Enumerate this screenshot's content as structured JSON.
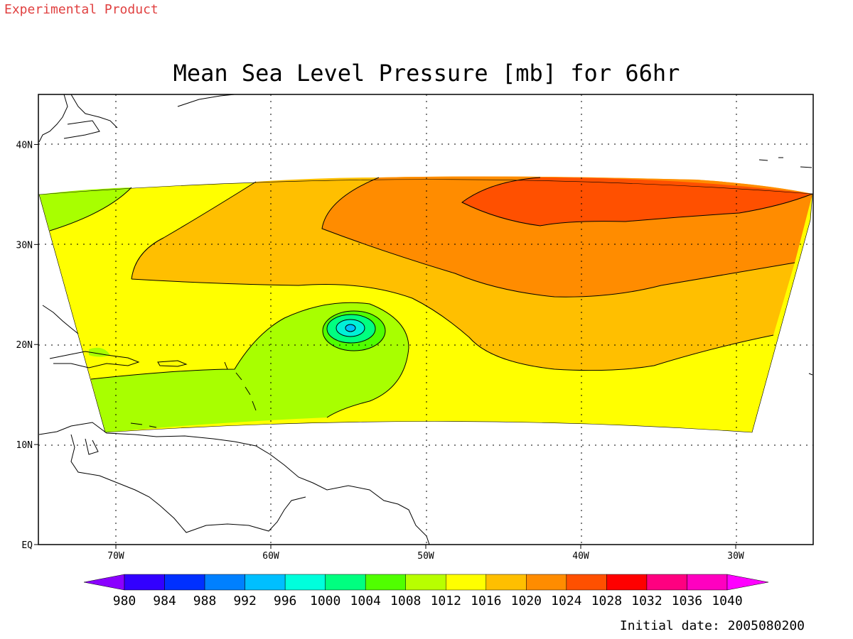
{
  "watermark": "Experimental Product",
  "title": "Mean Sea Level Pressure [mb] for 66hr",
  "initial_date": "Initial date: 2005080200",
  "map": {
    "lon_ticks": [
      "70W",
      "60W",
      "50W",
      "40W",
      "30W"
    ],
    "lat_ticks": [
      "40N",
      "30N",
      "20N",
      "10N",
      "EQ"
    ],
    "lon_range": [
      -75,
      -25
    ],
    "lat_range": [
      0,
      45
    ],
    "grid": "dotted",
    "contour_interval_mb": 4,
    "low_center": {
      "lon": -55,
      "lat": 21.7
    },
    "regions": [
      {
        "level": "1008-1012",
        "color": "#a8ff00"
      },
      {
        "level": "1012-1016",
        "color": "#ffff00"
      },
      {
        "level": "1016-1020",
        "color": "#ffbf00"
      },
      {
        "level": "1020-1024",
        "color": "#ff8c00"
      },
      {
        "level": "1024-1028",
        "color": "#ff5000"
      },
      {
        "level": "1004-1008",
        "color": "#50ff00"
      },
      {
        "level": "1000-1004",
        "color": "#00ff80"
      },
      {
        "level": "996-1000",
        "color": "#00f0d8"
      },
      {
        "level": "992-996",
        "color": "#00bfff"
      }
    ]
  },
  "colorbar": {
    "labels": [
      "980",
      "984",
      "988",
      "992",
      "996",
      "1000",
      "1004",
      "1008",
      "1012",
      "1016",
      "1020",
      "1024",
      "1028",
      "1032",
      "1036",
      "1040"
    ],
    "colors": [
      "#8a00ff",
      "#3200ff",
      "#0030ff",
      "#0080ff",
      "#00bfff",
      "#00ffdc",
      "#00ff80",
      "#50ff00",
      "#b8ff00",
      "#ffff00",
      "#ffbf00",
      "#ff8c00",
      "#ff5000",
      "#ff0000",
      "#ff0080",
      "#ff00c0",
      "#ff00ff"
    ]
  }
}
